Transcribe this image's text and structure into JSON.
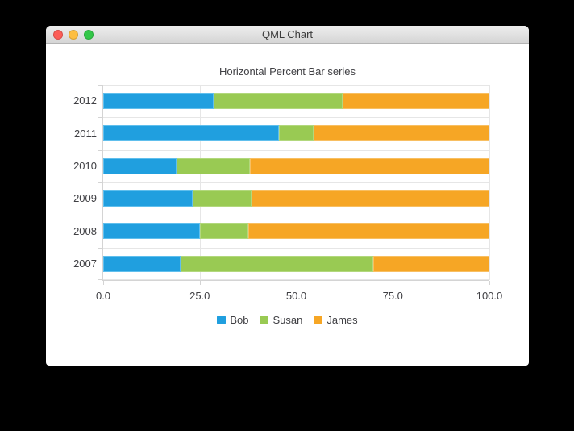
{
  "window": {
    "title": "QML Chart",
    "controls": {
      "close": "close-button",
      "minimize": "minimize-button",
      "zoom": "zoom-button"
    },
    "control_colors": {
      "close": "#fc5d57",
      "minimize": "#fdbe41",
      "zoom": "#33c748"
    }
  },
  "chart_data": {
    "type": "bar",
    "variant": "horizontal-percent-stacked",
    "title": "Horizontal Percent Bar series",
    "categories": [
      "2012",
      "2011",
      "2010",
      "2009",
      "2008",
      "2007"
    ],
    "series": [
      {
        "name": "Bob",
        "color": "#209fdf",
        "border_color": "#60bfed",
        "values": [
          6,
          5,
          4,
          3,
          2,
          2
        ]
      },
      {
        "name": "Susan",
        "color": "#99ca53",
        "border_color": "#b2d87d",
        "values": [
          7,
          1,
          4,
          2,
          1,
          5
        ]
      },
      {
        "name": "James",
        "color": "#f6a625",
        "border_color": "#f8bf62",
        "values": [
          8,
          5,
          13,
          8,
          5,
          3
        ]
      }
    ],
    "x_tick_labels": [
      "0.0",
      "25.0",
      "50.0",
      "75.0",
      "100.0"
    ],
    "x_tick_values": [
      0,
      25,
      50,
      75,
      100
    ],
    "xlim": [
      0,
      100
    ],
    "grid": true,
    "legend_position": "bottom",
    "theme": {
      "grid_color": "#e6e6e6",
      "axis_color": "#d4d4d4",
      "label_color": "#404044",
      "background": "#ffffff"
    }
  }
}
